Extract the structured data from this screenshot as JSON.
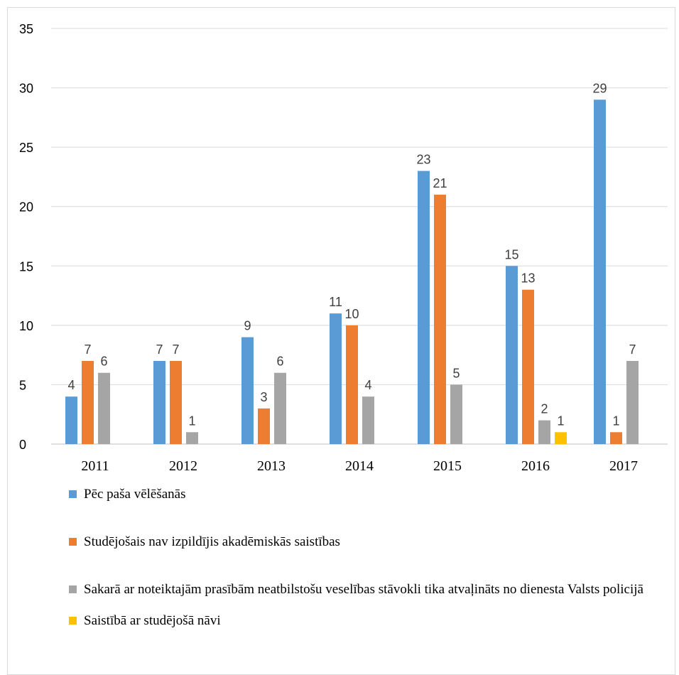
{
  "chart_data": {
    "type": "bar",
    "categories": [
      "2011",
      "2012",
      "2013",
      "2014",
      "2015",
      "2016",
      "2017"
    ],
    "ylim": [
      0,
      35
    ],
    "yticks": [
      "0",
      "5",
      "10",
      "15",
      "20",
      "25",
      "30",
      "35"
    ],
    "grid": true,
    "legend_position": "bottom",
    "series": [
      {
        "name": "Pēc paša vēlēšanās",
        "color": "#5b9bd5",
        "values": [
          4,
          7,
          9,
          11,
          23,
          15,
          29
        ]
      },
      {
        "name": "Studējošais nav izpildījis akadēmiskās saistības",
        "color": "#ed7d31",
        "values": [
          7,
          7,
          3,
          10,
          21,
          13,
          1
        ]
      },
      {
        "name": "Sakarā ar noteiktajām prasībām neatbilstošu veselības stāvokli tika atvaļināts no dienesta Valsts policijā",
        "color": "#a5a5a5",
        "values": [
          6,
          1,
          6,
          4,
          5,
          2,
          7
        ]
      },
      {
        "name": "Saistībā ar studējošā nāvi",
        "color": "#ffc000",
        "values": [
          null,
          null,
          null,
          null,
          null,
          1,
          null
        ]
      }
    ]
  }
}
